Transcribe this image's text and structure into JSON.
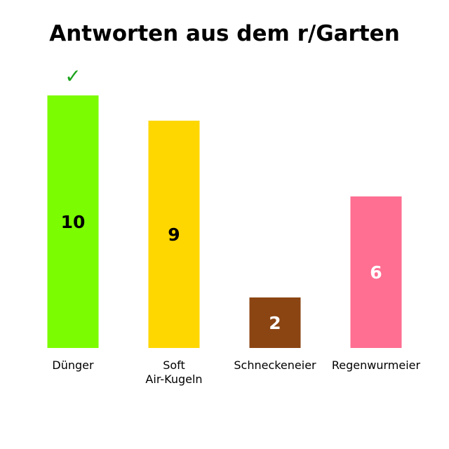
{
  "chart_data": {
    "type": "bar",
    "title": "Antworten aus dem r/Garten",
    "categories": [
      "Dünger",
      "Soft Air-Kugeln",
      "Schneckeneier",
      "Regenwurmeier"
    ],
    "category_lines": [
      [
        "Dünger"
      ],
      [
        "Soft",
        "Air-Kugeln"
      ],
      [
        "Schneckeneier"
      ],
      [
        "Regenwurmeier"
      ]
    ],
    "values": [
      10,
      9,
      2,
      6
    ],
    "value_labels": [
      "10",
      "9",
      "2",
      "6"
    ],
    "colors": [
      "#7cfc00",
      "#ffd700",
      "#8b4513",
      "#ff6f91"
    ],
    "value_label_colors": [
      "#000000",
      "#000000",
      "#ffffff",
      "#ffffff"
    ],
    "marked_category": "Dünger",
    "marker_symbol": "✓",
    "marker_color": "#1aa31a",
    "xlabel": "",
    "ylabel": "",
    "ylim": [
      0,
      10
    ],
    "grid": false,
    "legend": "none",
    "axes_visible": false
  }
}
